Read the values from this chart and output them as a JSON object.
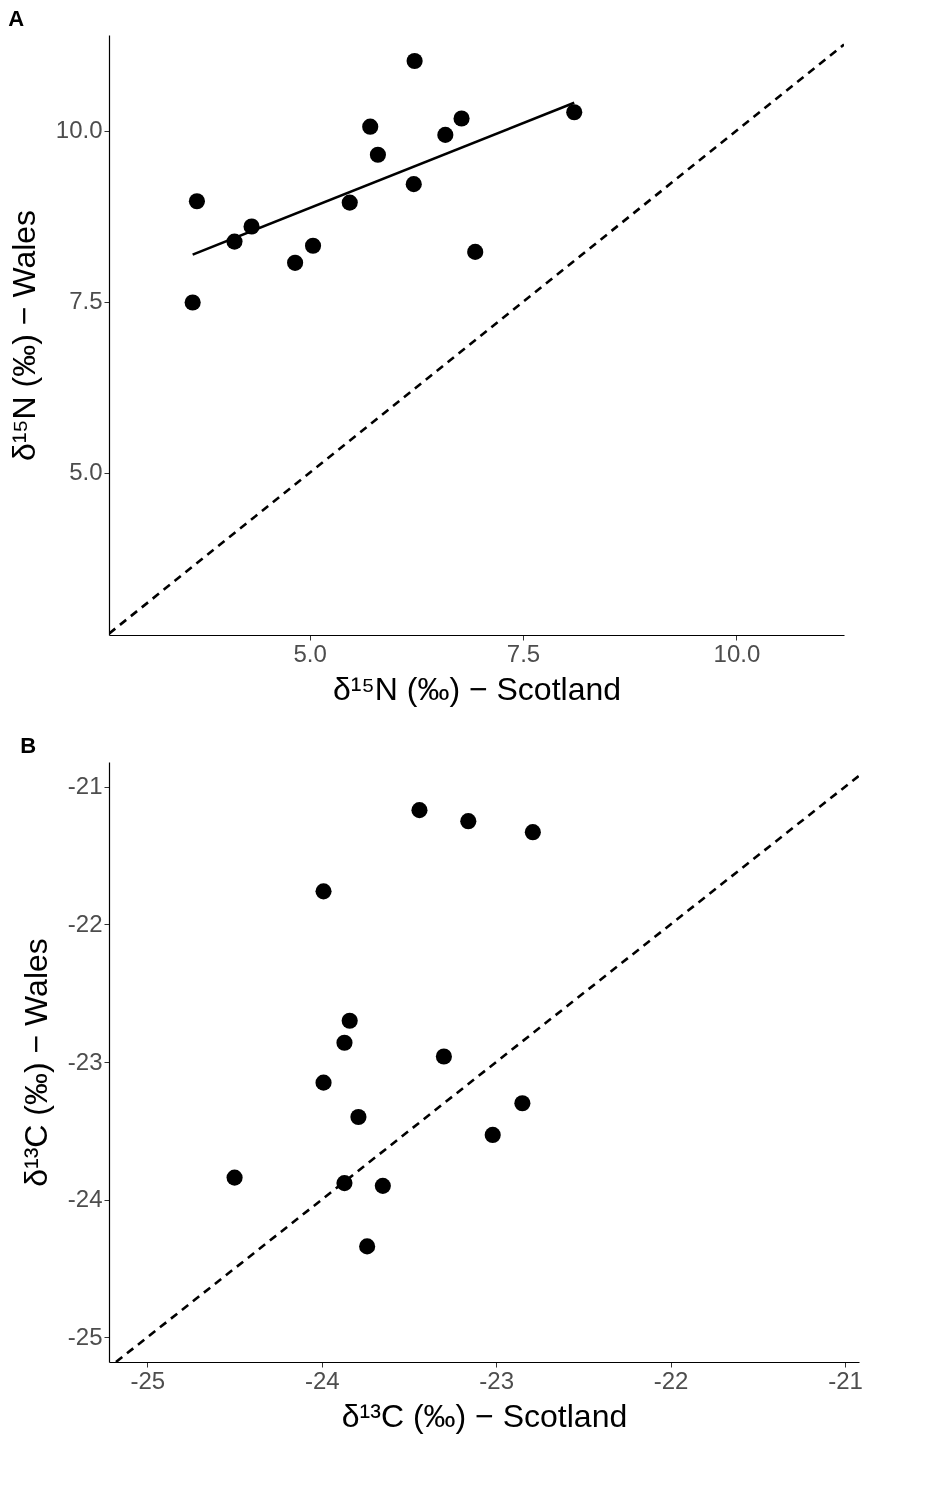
{
  "chart_data": [
    {
      "type": "scatter",
      "title": "A",
      "xlabel": "δ¹⁵N (‰) − Scotland",
      "ylabel": "δ¹⁵N (‰) − Wales",
      "xlim": [
        2.65,
        11.26
      ],
      "ylim": [
        2.63,
        11.4
      ],
      "xticks": [
        {
          "value": 5,
          "label": "5.0"
        },
        {
          "value": 7.5,
          "label": "7.5"
        },
        {
          "value": 10,
          "label": "10.0"
        }
      ],
      "yticks": [
        {
          "value": 5,
          "label": "5.0"
        },
        {
          "value": 7.5,
          "label": "7.5"
        },
        {
          "value": 10,
          "label": "10.0"
        }
      ],
      "grid": false,
      "series": [
        {
          "marker": "circle",
          "color": "#000000",
          "x": [
            3.63,
            3.68,
            4.12,
            4.32,
            4.83,
            5.04,
            5.47,
            5.71,
            5.8,
            6.22,
            6.23,
            6.59,
            6.78,
            6.94,
            8.1
          ],
          "values": [
            7.49,
            8.97,
            8.38,
            8.6,
            8.07,
            8.32,
            8.95,
            10.06,
            9.65,
            9.22,
            11.02,
            9.94,
            10.18,
            8.23,
            10.27
          ]
        },
        {
          "type": "line",
          "line_style": "solid",
          "color": "#000000",
          "x": [
            3.63,
            8.1
          ],
          "values": [
            8.19,
            10.41
          ]
        },
        {
          "type": "line",
          "line_style": "dashed",
          "color": "#000000",
          "x": [
            2.65,
            11.26
          ],
          "values": [
            2.65,
            11.26
          ]
        }
      ]
    },
    {
      "type": "scatter",
      "title": "B",
      "xlabel": "δ¹³C (‰) − Scotland",
      "ylabel": "δ¹³C (‰) − Wales",
      "xlim": [
        -25.22,
        -20.92
      ],
      "ylim": [
        -25.18,
        -20.82
      ],
      "xticks": [
        {
          "value": -25,
          "label": "-25"
        },
        {
          "value": -24,
          "label": "-24"
        },
        {
          "value": -23,
          "label": "-23"
        },
        {
          "value": -22,
          "label": "-22"
        },
        {
          "value": -21,
          "label": "-21"
        }
      ],
      "yticks": [
        {
          "value": -25,
          "label": "-25"
        },
        {
          "value": -24,
          "label": "-24"
        },
        {
          "value": -23,
          "label": "-23"
        },
        {
          "value": -22,
          "label": "-22"
        },
        {
          "value": -21,
          "label": "-21"
        }
      ],
      "grid": false,
      "series": [
        {
          "marker": "circle",
          "color": "#000000",
          "x": [
            -23.44,
            -23.16,
            -22.79,
            -23.99,
            -23.84,
            -23.87,
            -23.3,
            -23.99,
            -23.79,
            -22.85,
            -23.02,
            -24.5,
            -23.87,
            -23.65,
            -23.74
          ],
          "values": [
            -21.17,
            -21.25,
            -21.33,
            -21.76,
            -22.7,
            -22.86,
            -22.96,
            -23.15,
            -23.4,
            -23.3,
            -23.53,
            -23.84,
            -23.88,
            -23.9,
            -24.34
          ]
        },
        {
          "type": "line",
          "line_style": "dashed",
          "color": "#000000",
          "x": [
            -25.18,
            -20.92
          ],
          "values": [
            -25.18,
            -20.92
          ]
        }
      ]
    }
  ]
}
